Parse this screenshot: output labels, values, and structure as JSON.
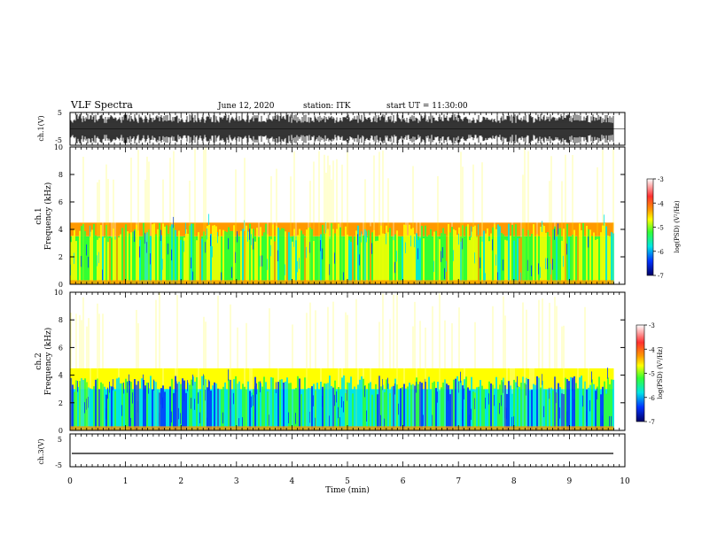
{
  "header": {
    "title": "VLF Spectra",
    "date": "June 12, 2020",
    "station": "station: ITK",
    "start_ut": "start UT = 11:30:00"
  },
  "chart_data": [
    {
      "type": "line",
      "name": "ch1-waveform",
      "ylabel": "ch.1(V)",
      "yticks": [
        "5",
        "-5"
      ],
      "ylim": [
        -5,
        5
      ],
      "xlim": [
        0,
        10
      ],
      "description_values": {
        "amplitude_range_V": [
          -5,
          5
        ]
      }
    },
    {
      "type": "heatmap",
      "name": "ch1-spectrogram",
      "ylabel": "ch.1\nFrequency (kHz)",
      "ylabel_line1": "ch.1",
      "ylabel_line2": "Frequency (kHz)",
      "yticks": [
        "0",
        "2",
        "4",
        "6",
        "8",
        "10"
      ],
      "ylim": [
        0,
        10
      ],
      "xlim": [
        0,
        9.8
      ],
      "colorbar": {
        "label": "log(PSD) (V²/Hz)",
        "ticks": [
          "-3",
          "-4",
          "-5",
          "-6",
          "-7"
        ],
        "range": [
          -7,
          -3
        ]
      },
      "bands": [
        {
          "freq_kHz": [
            0,
            3.5
          ],
          "log_psd": -5.3
        },
        {
          "freq_kHz": [
            3.5,
            4.5
          ],
          "log_psd": -4.3
        },
        {
          "freq_kHz": [
            4.5,
            10
          ],
          "log_psd": -3.5
        }
      ]
    },
    {
      "type": "heatmap",
      "name": "ch2-spectrogram",
      "ylabel_line1": "ch.2",
      "ylabel_line2": "Frequency (kHz)",
      "yticks": [
        "0",
        "2",
        "4",
        "6",
        "8",
        "10"
      ],
      "ylim": [
        0,
        10
      ],
      "xlim": [
        0,
        9.8
      ],
      "colorbar": {
        "label": "log(PSD) (V²/Hz)",
        "ticks": [
          "-3",
          "-4",
          "-5",
          "-6",
          "-7"
        ],
        "range": [
          -7,
          -3
        ]
      },
      "bands": [
        {
          "freq_kHz": [
            0,
            3.0
          ],
          "log_psd": -6.0
        },
        {
          "freq_kHz": [
            3.0,
            4.5
          ],
          "log_psd": -5.0
        },
        {
          "freq_kHz": [
            4.5,
            10
          ],
          "log_psd": -3.5
        }
      ]
    },
    {
      "type": "line",
      "name": "ch3-waveform",
      "ylabel": "ch.3(V)",
      "yticks": [
        "5",
        "-5"
      ],
      "ylim": [
        -5,
        5
      ],
      "xlim": [
        0,
        10
      ],
      "values_constant_V": -1.5
    }
  ],
  "xaxis": {
    "label": "Time (min)",
    "ticks": [
      "0",
      "1",
      "2",
      "3",
      "4",
      "5",
      "6",
      "7",
      "8",
      "9",
      "10"
    ],
    "range": [
      0,
      10
    ]
  }
}
